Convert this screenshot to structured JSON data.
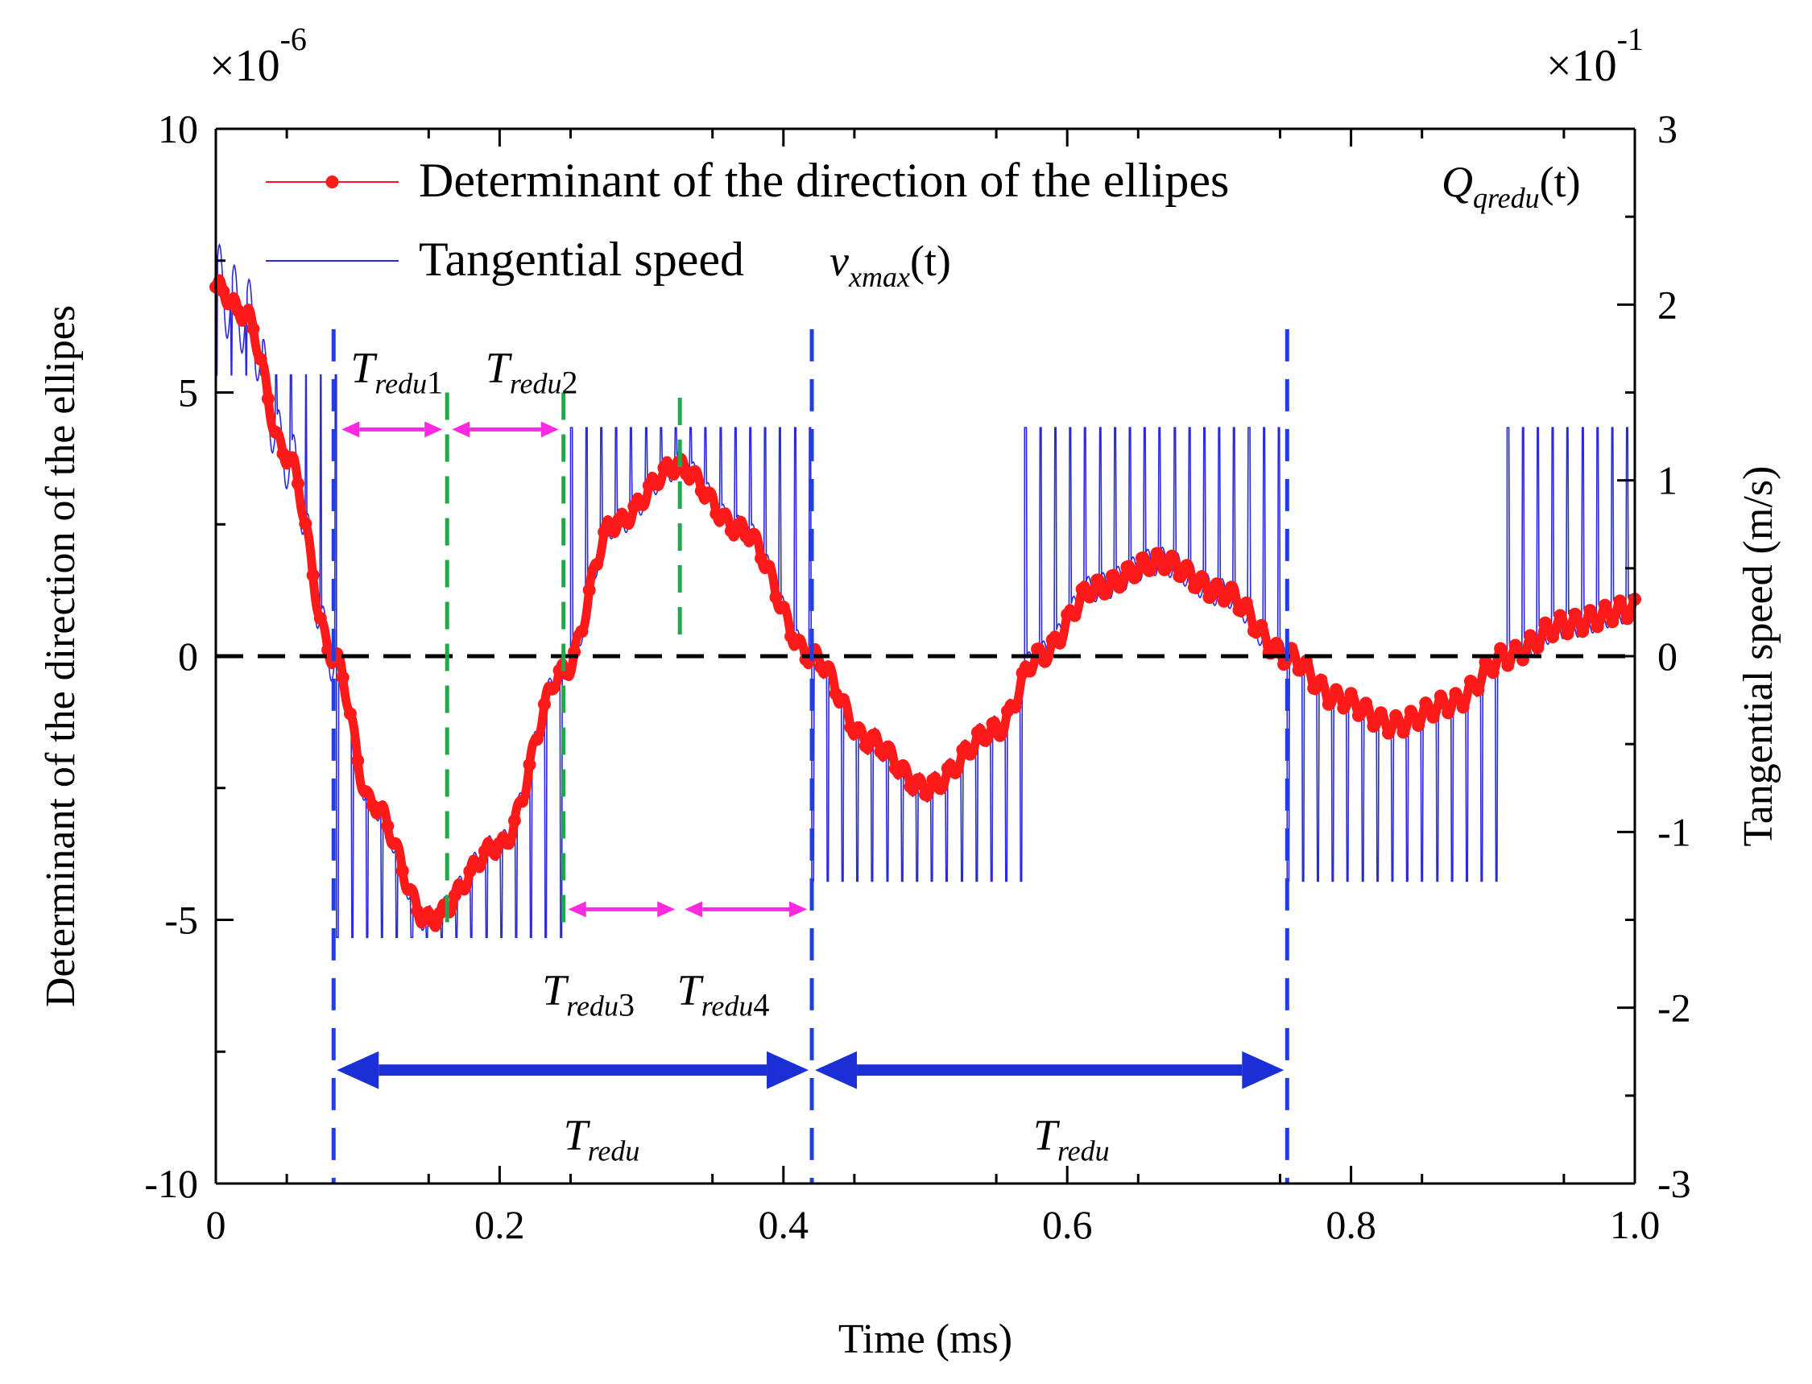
{
  "chart_data": {
    "type": "line",
    "xlabel": "Time (ms)",
    "ylabel_left": "Determinant of the direction of the ellipes",
    "ylabel_right": "Tangential speed (m/s)",
    "xlim": [
      0,
      1.0
    ],
    "ylim_left": [
      -10,
      10
    ],
    "ylim_right": [
      -3,
      3
    ],
    "left_multiplier": {
      "base": "×10",
      "exp": "-6"
    },
    "right_multiplier": {
      "base": "×10",
      "exp": "-1"
    },
    "x_ticks": [
      "0",
      "0.2",
      "0.4",
      "0.6",
      "0.8",
      "1.0"
    ],
    "y_left_ticks": [
      "10",
      "5",
      "0",
      "-5",
      "-10"
    ],
    "y_right_ticks": [
      "3",
      "2",
      "1",
      "0",
      "-1",
      "-2",
      "-3"
    ],
    "series": [
      {
        "name": "Determinant of the direction of the ellipes",
        "symbol": {
          "main": "Q",
          "sub": "qredu",
          "arg": "(t)"
        },
        "color": "#ff1a1a",
        "axis": "left",
        "x": [
          0,
          0.02,
          0.05,
          0.083,
          0.11,
          0.15,
          0.2,
          0.245,
          0.28,
          0.325,
          0.37,
          0.42,
          0.46,
          0.5,
          0.55,
          0.58,
          0.62,
          0.665,
          0.71,
          0.755,
          0.79,
          0.83,
          0.87,
          0.91,
          0.95,
          1.0
        ],
        "y": [
          7.0,
          6.5,
          3.8,
          0.0,
          -2.8,
          -5.0,
          -3.6,
          -0.3,
          2.5,
          3.6,
          2.4,
          0.0,
          -1.6,
          -2.5,
          -1.4,
          0.0,
          1.3,
          1.8,
          1.2,
          0.0,
          -0.8,
          -1.3,
          -0.9,
          0.0,
          0.6,
          0.9
        ]
      },
      {
        "name": "Tangential speed",
        "symbol": {
          "main": "v",
          "sub": "xmax",
          "arg": "(t)"
        },
        "color": "#2a2adb",
        "axis": "right",
        "envelope": [
          {
            "x0": 0.0,
            "x1": 0.085,
            "low": 0.5,
            "high": 1.6
          },
          {
            "x0": 0.085,
            "x1": 0.25,
            "low": -1.6,
            "high": 0.0
          },
          {
            "x0": 0.25,
            "x1": 0.42,
            "low": 0.0,
            "high": 1.3
          },
          {
            "x0": 0.42,
            "x1": 0.57,
            "low": -1.28,
            "high": 0.0
          },
          {
            "x0": 0.57,
            "x1": 0.755,
            "low": 0.0,
            "high": 1.3
          },
          {
            "x0": 0.755,
            "x1": 0.91,
            "low": -1.28,
            "high": 0.0
          },
          {
            "x0": 0.91,
            "x1": 1.0,
            "low": 0.0,
            "high": 1.3
          }
        ]
      }
    ],
    "annotations": {
      "zero_crossings": [
        0.083,
        0.42,
        0.755
      ],
      "quarter_lines": [
        0.163,
        0.245,
        0.327
      ],
      "t1": {
        "main": "T",
        "sub": "redu",
        "num": "1"
      },
      "t2": {
        "main": "T",
        "sub": "redu",
        "num": "2"
      },
      "t3": {
        "main": "T",
        "sub": "redu",
        "num": "3"
      },
      "t4": {
        "main": "T",
        "sub": "redu",
        "num": "4"
      },
      "period_1": {
        "main": "T",
        "sub": "redu"
      },
      "period_2": {
        "main": "T",
        "sub": "redu"
      }
    },
    "grid": false,
    "legend": "top-left",
    "zero_line": true
  }
}
